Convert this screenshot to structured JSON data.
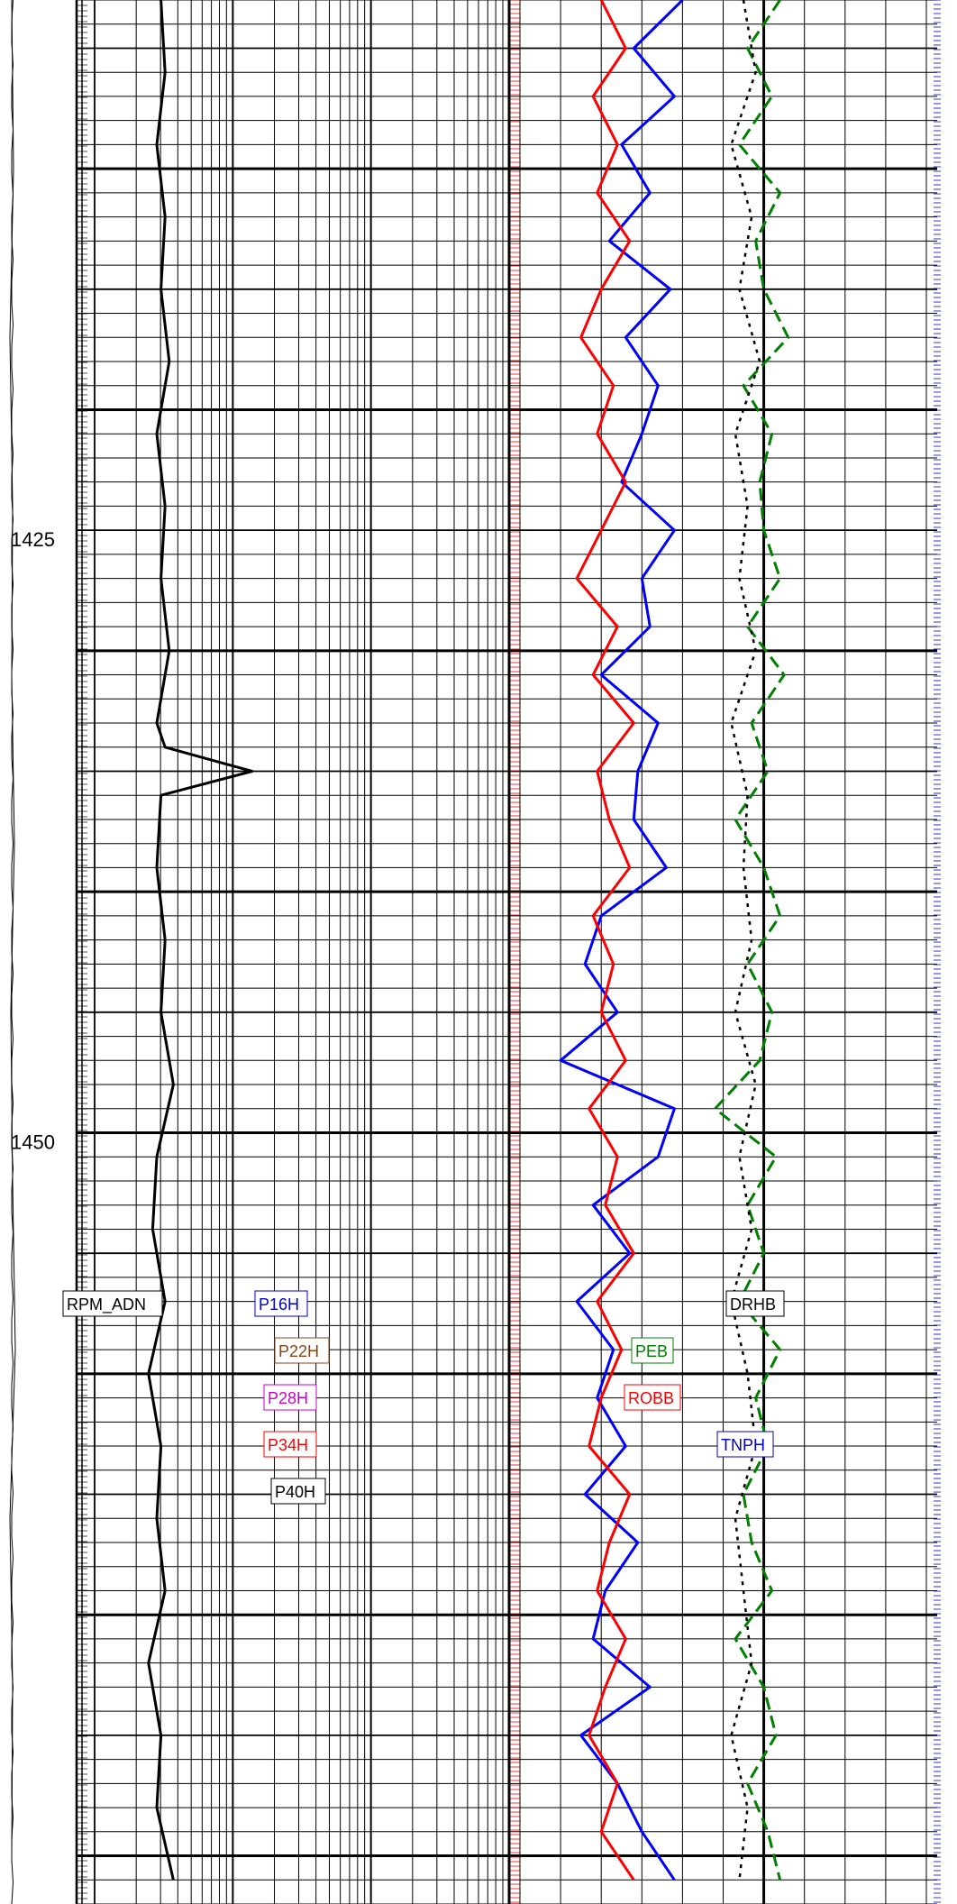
{
  "chart_data": {
    "type": "line",
    "depth_axis": {
      "range": [
        1403,
        1482
      ],
      "tick_labels": [
        {
          "depth": 1425,
          "text": "1425"
        },
        {
          "depth": 1450,
          "text": "1450"
        }
      ]
    },
    "curve_labels": [
      {
        "name": "RPM_ADN",
        "color": "#000000",
        "track": "depth"
      },
      {
        "name": "P16H",
        "color": "#0000cc",
        "track": "resistivity"
      },
      {
        "name": "P22H",
        "color": "#8b4513",
        "track": "resistivity"
      },
      {
        "name": "P28H",
        "color": "#cc00cc",
        "track": "resistivity"
      },
      {
        "name": "P34H",
        "color": "#ff0000",
        "track": "resistivity"
      },
      {
        "name": "P40H",
        "color": "#000000",
        "track": "resistivity"
      },
      {
        "name": "DRHB",
        "color": "#000000",
        "track": "porosity"
      },
      {
        "name": "PEB",
        "color": "#008000",
        "track": "porosity"
      },
      {
        "name": "ROBB",
        "color": "#ff0000",
        "track": "porosity"
      },
      {
        "name": "TNPH",
        "color": "#0000cc",
        "track": "porosity"
      }
    ],
    "series": [
      {
        "curve": "P40H",
        "depths": [
          1403,
          1406,
          1409,
          1412,
          1415,
          1418,
          1421,
          1424,
          1427,
          1430,
          1433,
          1434,
          1435,
          1436,
          1439,
          1442,
          1445,
          1448,
          1451,
          1454,
          1457,
          1460,
          1463,
          1466,
          1469,
          1472,
          1475,
          1478,
          1481
        ],
        "values": [
          0.16,
          0.17,
          0.15,
          0.17,
          0.16,
          0.18,
          0.15,
          0.17,
          0.16,
          0.18,
          0.15,
          0.17,
          0.38,
          0.16,
          0.15,
          0.17,
          0.16,
          0.19,
          0.15,
          0.14,
          0.17,
          0.13,
          0.16,
          0.15,
          0.17,
          0.13,
          0.16,
          0.15,
          0.19
        ]
      },
      {
        "curve": "TNPH",
        "depths": [
          1403,
          1405,
          1407,
          1409,
          1411,
          1413,
          1415,
          1417,
          1419,
          1421,
          1423,
          1425,
          1427,
          1429,
          1431,
          1433,
          1435,
          1437,
          1439,
          1441,
          1443,
          1445,
          1447,
          1449,
          1451,
          1453,
          1455,
          1457,
          1459,
          1461,
          1463,
          1465,
          1467,
          1469,
          1471,
          1473,
          1475,
          1477,
          1479,
          1481
        ],
        "values": [
          0.6,
          0.72,
          0.62,
          0.75,
          0.68,
          0.78,
          0.63,
          0.74,
          0.66,
          0.7,
          0.75,
          0.62,
          0.7,
          0.68,
          0.8,
          0.66,
          0.71,
          0.72,
          0.64,
          0.8,
          0.84,
          0.76,
          0.9,
          0.62,
          0.66,
          0.82,
          0.73,
          0.86,
          0.77,
          0.81,
          0.74,
          0.84,
          0.71,
          0.79,
          0.82,
          0.68,
          0.85,
          0.76,
          0.7,
          0.62
        ]
      },
      {
        "curve": "PEB",
        "depths": [
          1403,
          1405,
          1407,
          1409,
          1411,
          1413,
          1415,
          1417,
          1419,
          1421,
          1423,
          1425,
          1427,
          1429,
          1431,
          1433,
          1435,
          1437,
          1439,
          1441,
          1443,
          1445,
          1447,
          1449,
          1451,
          1453,
          1455,
          1457,
          1459,
          1461,
          1463,
          1465,
          1467,
          1469,
          1471,
          1473,
          1475,
          1477,
          1479,
          1481
        ],
        "values": [
          0.36,
          0.44,
          0.38,
          0.46,
          0.36,
          0.42,
          0.4,
          0.34,
          0.45,
          0.38,
          0.41,
          0.4,
          0.36,
          0.44,
          0.35,
          0.43,
          0.39,
          0.47,
          0.4,
          0.36,
          0.44,
          0.38,
          0.41,
          0.52,
          0.37,
          0.44,
          0.4,
          0.46,
          0.36,
          0.42,
          0.39,
          0.45,
          0.43,
          0.38,
          0.47,
          0.4,
          0.37,
          0.44,
          0.39,
          0.36
        ]
      },
      {
        "curve": "ROBB",
        "depths": [
          1403,
          1405,
          1407,
          1409,
          1411,
          1413,
          1415,
          1417,
          1419,
          1421,
          1423,
          1425,
          1427,
          1429,
          1431,
          1433,
          1435,
          1437,
          1439,
          1441,
          1443,
          1445,
          1447,
          1449,
          1451,
          1453,
          1455,
          1457,
          1459,
          1461,
          1463,
          1465,
          1467,
          1469,
          1471,
          1473,
          1475,
          1477,
          1479,
          1481
        ],
        "values": [
          0.2,
          0.26,
          0.18,
          0.24,
          0.19,
          0.27,
          0.2,
          0.15,
          0.23,
          0.19,
          0.26,
          0.2,
          0.14,
          0.24,
          0.18,
          0.28,
          0.19,
          0.22,
          0.27,
          0.18,
          0.23,
          0.2,
          0.26,
          0.17,
          0.24,
          0.21,
          0.28,
          0.19,
          0.25,
          0.2,
          0.17,
          0.27,
          0.22,
          0.19,
          0.26,
          0.21,
          0.17,
          0.24,
          0.2,
          0.28
        ]
      },
      {
        "curve": "DRHB",
        "depths": [
          1403,
          1406,
          1409,
          1412,
          1415,
          1418,
          1421,
          1424,
          1427,
          1430,
          1433,
          1436,
          1439,
          1442,
          1445,
          1448,
          1451,
          1454,
          1457,
          1460,
          1463,
          1466,
          1469,
          1472,
          1475,
          1478,
          1481
        ],
        "values": [
          0.55,
          0.58,
          0.52,
          0.57,
          0.54,
          0.59,
          0.53,
          0.56,
          0.54,
          0.58,
          0.52,
          0.56,
          0.55,
          0.57,
          0.53,
          0.58,
          0.54,
          0.57,
          0.52,
          0.56,
          0.58,
          0.53,
          0.55,
          0.57,
          0.52,
          0.56,
          0.54
        ]
      },
      {
        "curve": "RPM_ADN",
        "depths": [
          1403,
          1410,
          1417,
          1424,
          1431,
          1438,
          1445,
          1452,
          1459,
          1466,
          1473,
          1480
        ],
        "values": [
          0.5,
          0.7,
          0.3,
          0.6,
          0.5,
          0.8,
          0.4,
          0.6,
          0.9,
          0.3,
          0.6,
          0.5
        ]
      }
    ]
  }
}
